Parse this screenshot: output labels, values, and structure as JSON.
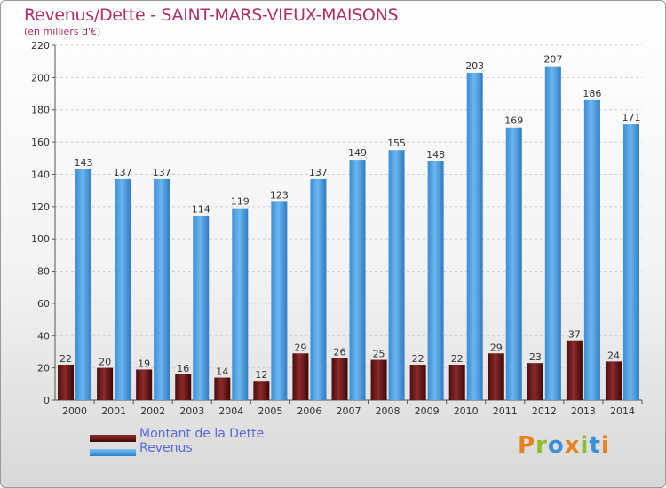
{
  "header": {
    "title": "Revenus/Dette - SAINT-MARS-VIEUX-MAISONS",
    "subtitle": "(en milliers d'€)"
  },
  "legend": {
    "dette_label": "Montant de la Dette",
    "revenus_label": "Revenus"
  },
  "brand": {
    "text": "Proxiti",
    "colors": [
      "#e8821e",
      "#8dbf2a",
      "#3a8fd9",
      "#e8821e",
      "#8dbf2a",
      "#3a8fd9",
      "#e8821e"
    ]
  },
  "colors": {
    "dette": "#6b1a1a",
    "revenus": "#4a9fe0",
    "title": "#b0306a",
    "legend_text": "#5b6bd6"
  },
  "chart_data": {
    "type": "bar",
    "title": "Revenus/Dette - SAINT-MARS-VIEUX-MAISONS",
    "subtitle": "(en milliers d'€)",
    "xlabel": "",
    "ylabel": "",
    "ylim": [
      0,
      220
    ],
    "yticks": [
      0,
      20,
      40,
      60,
      80,
      100,
      120,
      140,
      160,
      180,
      200,
      220
    ],
    "grid": true,
    "legend_position": "bottom-left",
    "categories": [
      "2000",
      "2001",
      "2002",
      "2003",
      "2004",
      "2005",
      "2006",
      "2007",
      "2008",
      "2009",
      "2010",
      "2011",
      "2012",
      "2013",
      "2014"
    ],
    "series": [
      {
        "name": "Montant de la Dette",
        "values": [
          22,
          20,
          19,
          16,
          14,
          12,
          29,
          26,
          25,
          22,
          22,
          29,
          23,
          37,
          24
        ]
      },
      {
        "name": "Revenus",
        "values": [
          143,
          137,
          137,
          114,
          119,
          123,
          137,
          149,
          155,
          148,
          203,
          169,
          207,
          186,
          171
        ]
      }
    ]
  }
}
